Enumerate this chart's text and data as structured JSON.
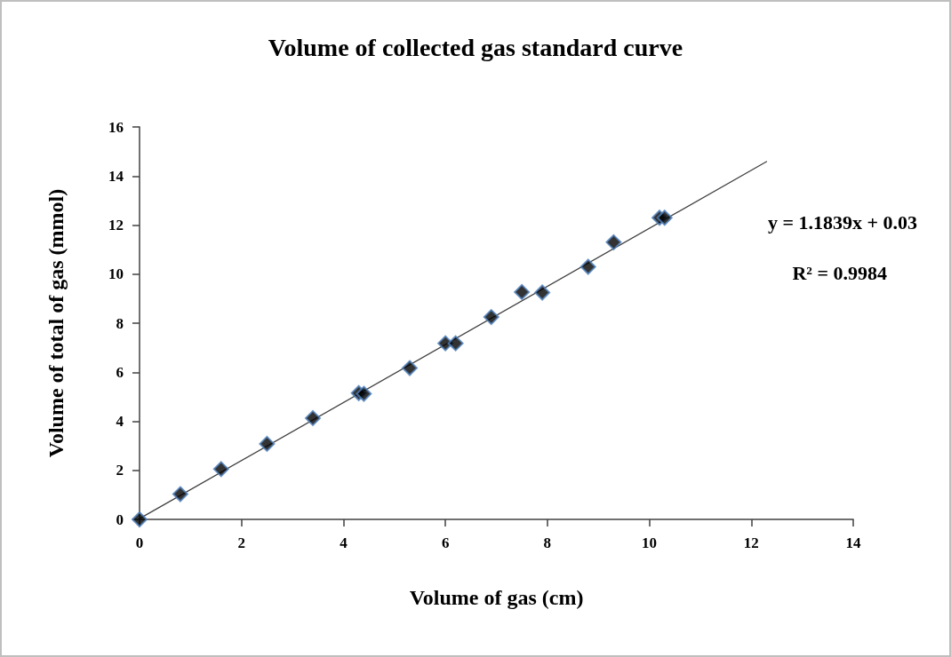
{
  "chart_data": {
    "type": "scatter",
    "title": "Volume of collected gas standard curve",
    "xlabel": "Volume of gas (cm)",
    "ylabel": "Volume of total of gas (mmol)",
    "xlim": [
      0,
      14
    ],
    "xticks": [
      0,
      2,
      4,
      6,
      8,
      10,
      12,
      14
    ],
    "ylim": [
      0,
      16
    ],
    "yticks": [
      0,
      2,
      4,
      6,
      8,
      10,
      12,
      14,
      16
    ],
    "grid": false,
    "marker": "diamond",
    "series": [
      {
        "color": "#000000",
        "x": [
          0,
          0.8,
          1.6,
          2.5,
          3.4,
          4.3,
          4.4,
          5.3,
          6.0,
          6.2,
          6.9,
          7.5,
          7.9,
          8.8,
          9.3,
          10.2,
          10.3
        ],
        "values": [
          0,
          1.03,
          2.05,
          3.08,
          4.13,
          5.15,
          5.12,
          6.17,
          7.18,
          7.18,
          8.25,
          9.27,
          9.25,
          10.3,
          11.3,
          12.3,
          12.3
        ]
      },
      {
        "type": "line",
        "color": "#404040",
        "x": [
          0,
          12.3
        ],
        "values": [
          0.03,
          14.59
        ],
        "marker": "none",
        "line_style": "solid"
      }
    ],
    "annotations": [
      "y = 1.1839x + 0.03",
      "R² = 0.9984"
    ]
  }
}
